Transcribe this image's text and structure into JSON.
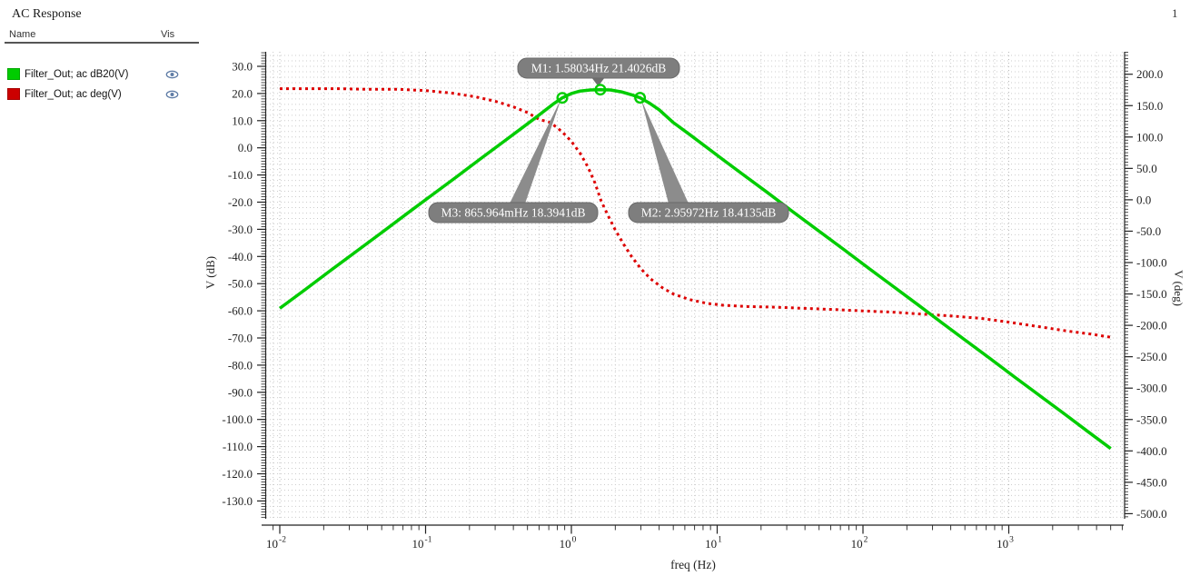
{
  "window": {
    "title": "AC Response",
    "page_number": "1"
  },
  "legend": {
    "name_header": "Name",
    "vis_header": "Vis",
    "rows": [
      {
        "name": "Filter_Out; ac dB20(V)",
        "color": "#00cc00",
        "visible": true
      },
      {
        "name": "Filter_Out; ac deg(V)",
        "color": "#cc0000",
        "visible": true
      }
    ],
    "eye_icon_color": "#5f7ca6"
  },
  "chart_data": {
    "type": "line",
    "title": "AC Response",
    "xlabel": "freq (Hz)",
    "x_axis": {
      "scale": "log",
      "decades": [
        -2,
        -1,
        0,
        1,
        2,
        3
      ],
      "range": [
        0.01,
        5000
      ]
    },
    "left_axis": {
      "label": "V (dB)",
      "ticks": [
        30,
        20,
        10,
        0,
        -10,
        -20,
        -30,
        -40,
        -50,
        -60,
        -70,
        -80,
        -90,
        -100,
        -110,
        -120,
        -130
      ],
      "range": [
        30,
        -130
      ]
    },
    "right_axis": {
      "label": "V (deg)",
      "ticks": [
        200,
        150,
        100,
        50,
        0,
        -50,
        -100,
        -150,
        -200,
        -250,
        -300,
        -350,
        -400,
        -450,
        -500
      ],
      "range": [
        200,
        -500
      ]
    },
    "grid": "dotted",
    "series": [
      {
        "name": "Filter_Out; ac dB20(V)",
        "color": "#00cc00",
        "style": "solid",
        "axis": "left",
        "unit": "dB",
        "points": [
          [
            0.01,
            -59.1
          ],
          [
            0.015,
            -52.1
          ],
          [
            0.022,
            -45.4
          ],
          [
            0.033,
            -38.4
          ],
          [
            0.05,
            -31.2
          ],
          [
            0.075,
            -24.1
          ],
          [
            0.11,
            -17.5
          ],
          [
            0.16,
            -11.0
          ],
          [
            0.24,
            -3.9
          ],
          [
            0.35,
            2.6
          ],
          [
            0.45,
            7.0
          ],
          [
            0.55,
            10.5
          ],
          [
            0.65,
            13.5
          ],
          [
            0.75,
            16.1
          ],
          [
            0.865964,
            18.3941
          ],
          [
            1.0,
            20.0
          ],
          [
            1.15,
            20.9
          ],
          [
            1.35,
            21.3
          ],
          [
            1.58034,
            21.4026
          ],
          [
            1.85,
            21.3
          ],
          [
            2.2,
            20.6
          ],
          [
            2.6,
            19.5
          ],
          [
            2.95972,
            18.4135
          ],
          [
            3.4,
            16.6
          ],
          [
            4.0,
            14.0
          ],
          [
            5.0,
            9.3
          ],
          [
            6.5,
            4.8
          ],
          [
            8.5,
            0.1
          ],
          [
            11,
            -4.4
          ],
          [
            15,
            -9.8
          ],
          [
            22,
            -16.4
          ],
          [
            33,
            -23.5
          ],
          [
            50,
            -30.7
          ],
          [
            75,
            -37.7
          ],
          [
            110,
            -44.4
          ],
          [
            160,
            -50.9
          ],
          [
            240,
            -57.9
          ],
          [
            350,
            -64.5
          ],
          [
            500,
            -70.7
          ],
          [
            750,
            -77.7
          ],
          [
            1100,
            -84.4
          ],
          [
            1600,
            -90.9
          ],
          [
            2400,
            -97.9
          ],
          [
            3500,
            -104.5
          ],
          [
            5000,
            -110.7
          ]
        ]
      },
      {
        "name": "Filter_Out; ac deg(V)",
        "color": "#dd0000",
        "style": "dotted",
        "axis": "right",
        "unit": "deg",
        "points": [
          [
            0.01,
            177
          ],
          [
            0.015,
            177
          ],
          [
            0.025,
            177
          ],
          [
            0.04,
            176
          ],
          [
            0.065,
            176
          ],
          [
            0.1,
            174
          ],
          [
            0.15,
            170
          ],
          [
            0.22,
            164
          ],
          [
            0.3,
            157
          ],
          [
            0.4,
            148
          ],
          [
            0.5,
            139
          ],
          [
            0.6,
            128
          ],
          [
            0.7,
            124
          ],
          [
            0.8,
            115
          ],
          [
            0.9,
            104
          ],
          [
            1.0,
            93
          ],
          [
            1.15,
            74
          ],
          [
            1.3,
            52
          ],
          [
            1.45,
            27
          ],
          [
            1.6,
            -2
          ],
          [
            1.8,
            -27
          ],
          [
            2.0,
            -48
          ],
          [
            2.3,
            -72
          ],
          [
            2.6,
            -91
          ],
          [
            3.0,
            -110
          ],
          [
            3.5,
            -126
          ],
          [
            4.2,
            -140
          ],
          [
            5.0,
            -150
          ],
          [
            6.5,
            -159
          ],
          [
            8.5,
            -165
          ],
          [
            11,
            -168
          ],
          [
            16,
            -170
          ],
          [
            25,
            -171
          ],
          [
            40,
            -173
          ],
          [
            65,
            -175
          ],
          [
            100,
            -177
          ],
          [
            160,
            -179
          ],
          [
            250,
            -182
          ],
          [
            400,
            -185
          ],
          [
            650,
            -189
          ],
          [
            1000,
            -195
          ],
          [
            1600,
            -202
          ],
          [
            2500,
            -209
          ],
          [
            3700,
            -214
          ],
          [
            5000,
            -219
          ]
        ]
      }
    ],
    "markers": [
      {
        "id": "M1",
        "label": "M1: 1.58034Hz 21.4026dB",
        "freq": 1.58034,
        "value_db": 21.4026
      },
      {
        "id": "M2",
        "label": "M2: 2.95972Hz 18.4135dB",
        "freq": 2.95972,
        "value_db": 18.4135
      },
      {
        "id": "M3",
        "label": "M3: 865.964mHz 18.3941dB",
        "freq": 0.865964,
        "value_db": 18.3941
      }
    ],
    "marker_box_color": "#7e7e7e",
    "grid_color": "#cccccc",
    "axis_color": "#222222"
  }
}
